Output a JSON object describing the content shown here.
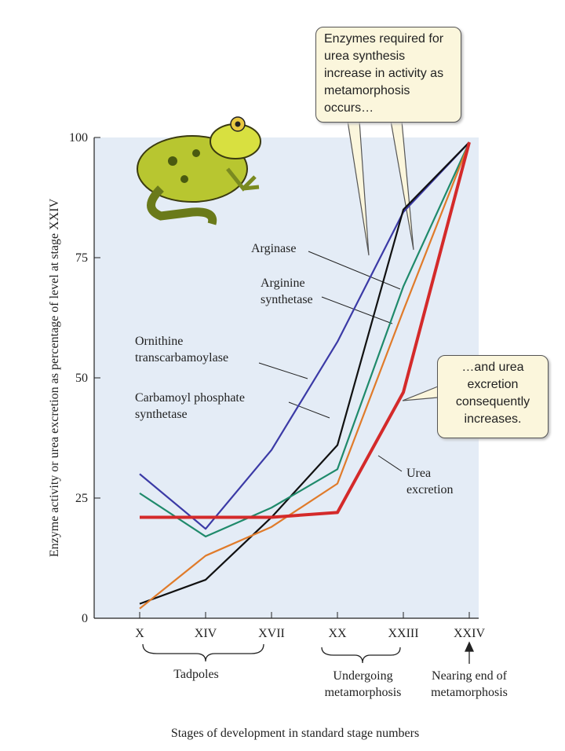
{
  "chart_data": {
    "type": "line",
    "y_label": "Enzyme activity or urea excretion as percentage of level at stage XXIV",
    "x_label": "Stages of development in standard stage numbers",
    "categories": [
      "X",
      "XIV",
      "XVII",
      "XX",
      "XXIII",
      "XXIV"
    ],
    "ylim": [
      0,
      100
    ],
    "yticks": [
      0,
      25,
      50,
      75,
      100
    ],
    "series": [
      {
        "name": "Ornithine transcarbamoylase",
        "color": "#3b3aa6",
        "values": [
          30,
          18.6,
          35,
          57.5,
          84.5,
          99
        ]
      },
      {
        "name": "Carbamoyl phosphate synthetase",
        "color": "#111111",
        "values": [
          3,
          8,
          21,
          36,
          85,
          99
        ]
      },
      {
        "name": "Arginase",
        "color": "#1f8a6b",
        "values": [
          26,
          17,
          23,
          31,
          69,
          99
        ]
      },
      {
        "name": "Arginine synthetase",
        "color": "#e07b2a",
        "values": [
          2,
          13,
          19,
          28,
          64,
          99
        ]
      },
      {
        "name": "Urea excretion",
        "color": "#d42a2a",
        "values": [
          21,
          21,
          21,
          22,
          47,
          99
        ]
      }
    ],
    "annotations": [
      "Enzymes required for urea synthesis increase in activity as metamorphosis occurs…",
      "…and urea excretion consequently increases.",
      "Tadpoles",
      "Undergoing metamorphosis",
      "Nearing end of metamorphosis"
    ]
  }
}
